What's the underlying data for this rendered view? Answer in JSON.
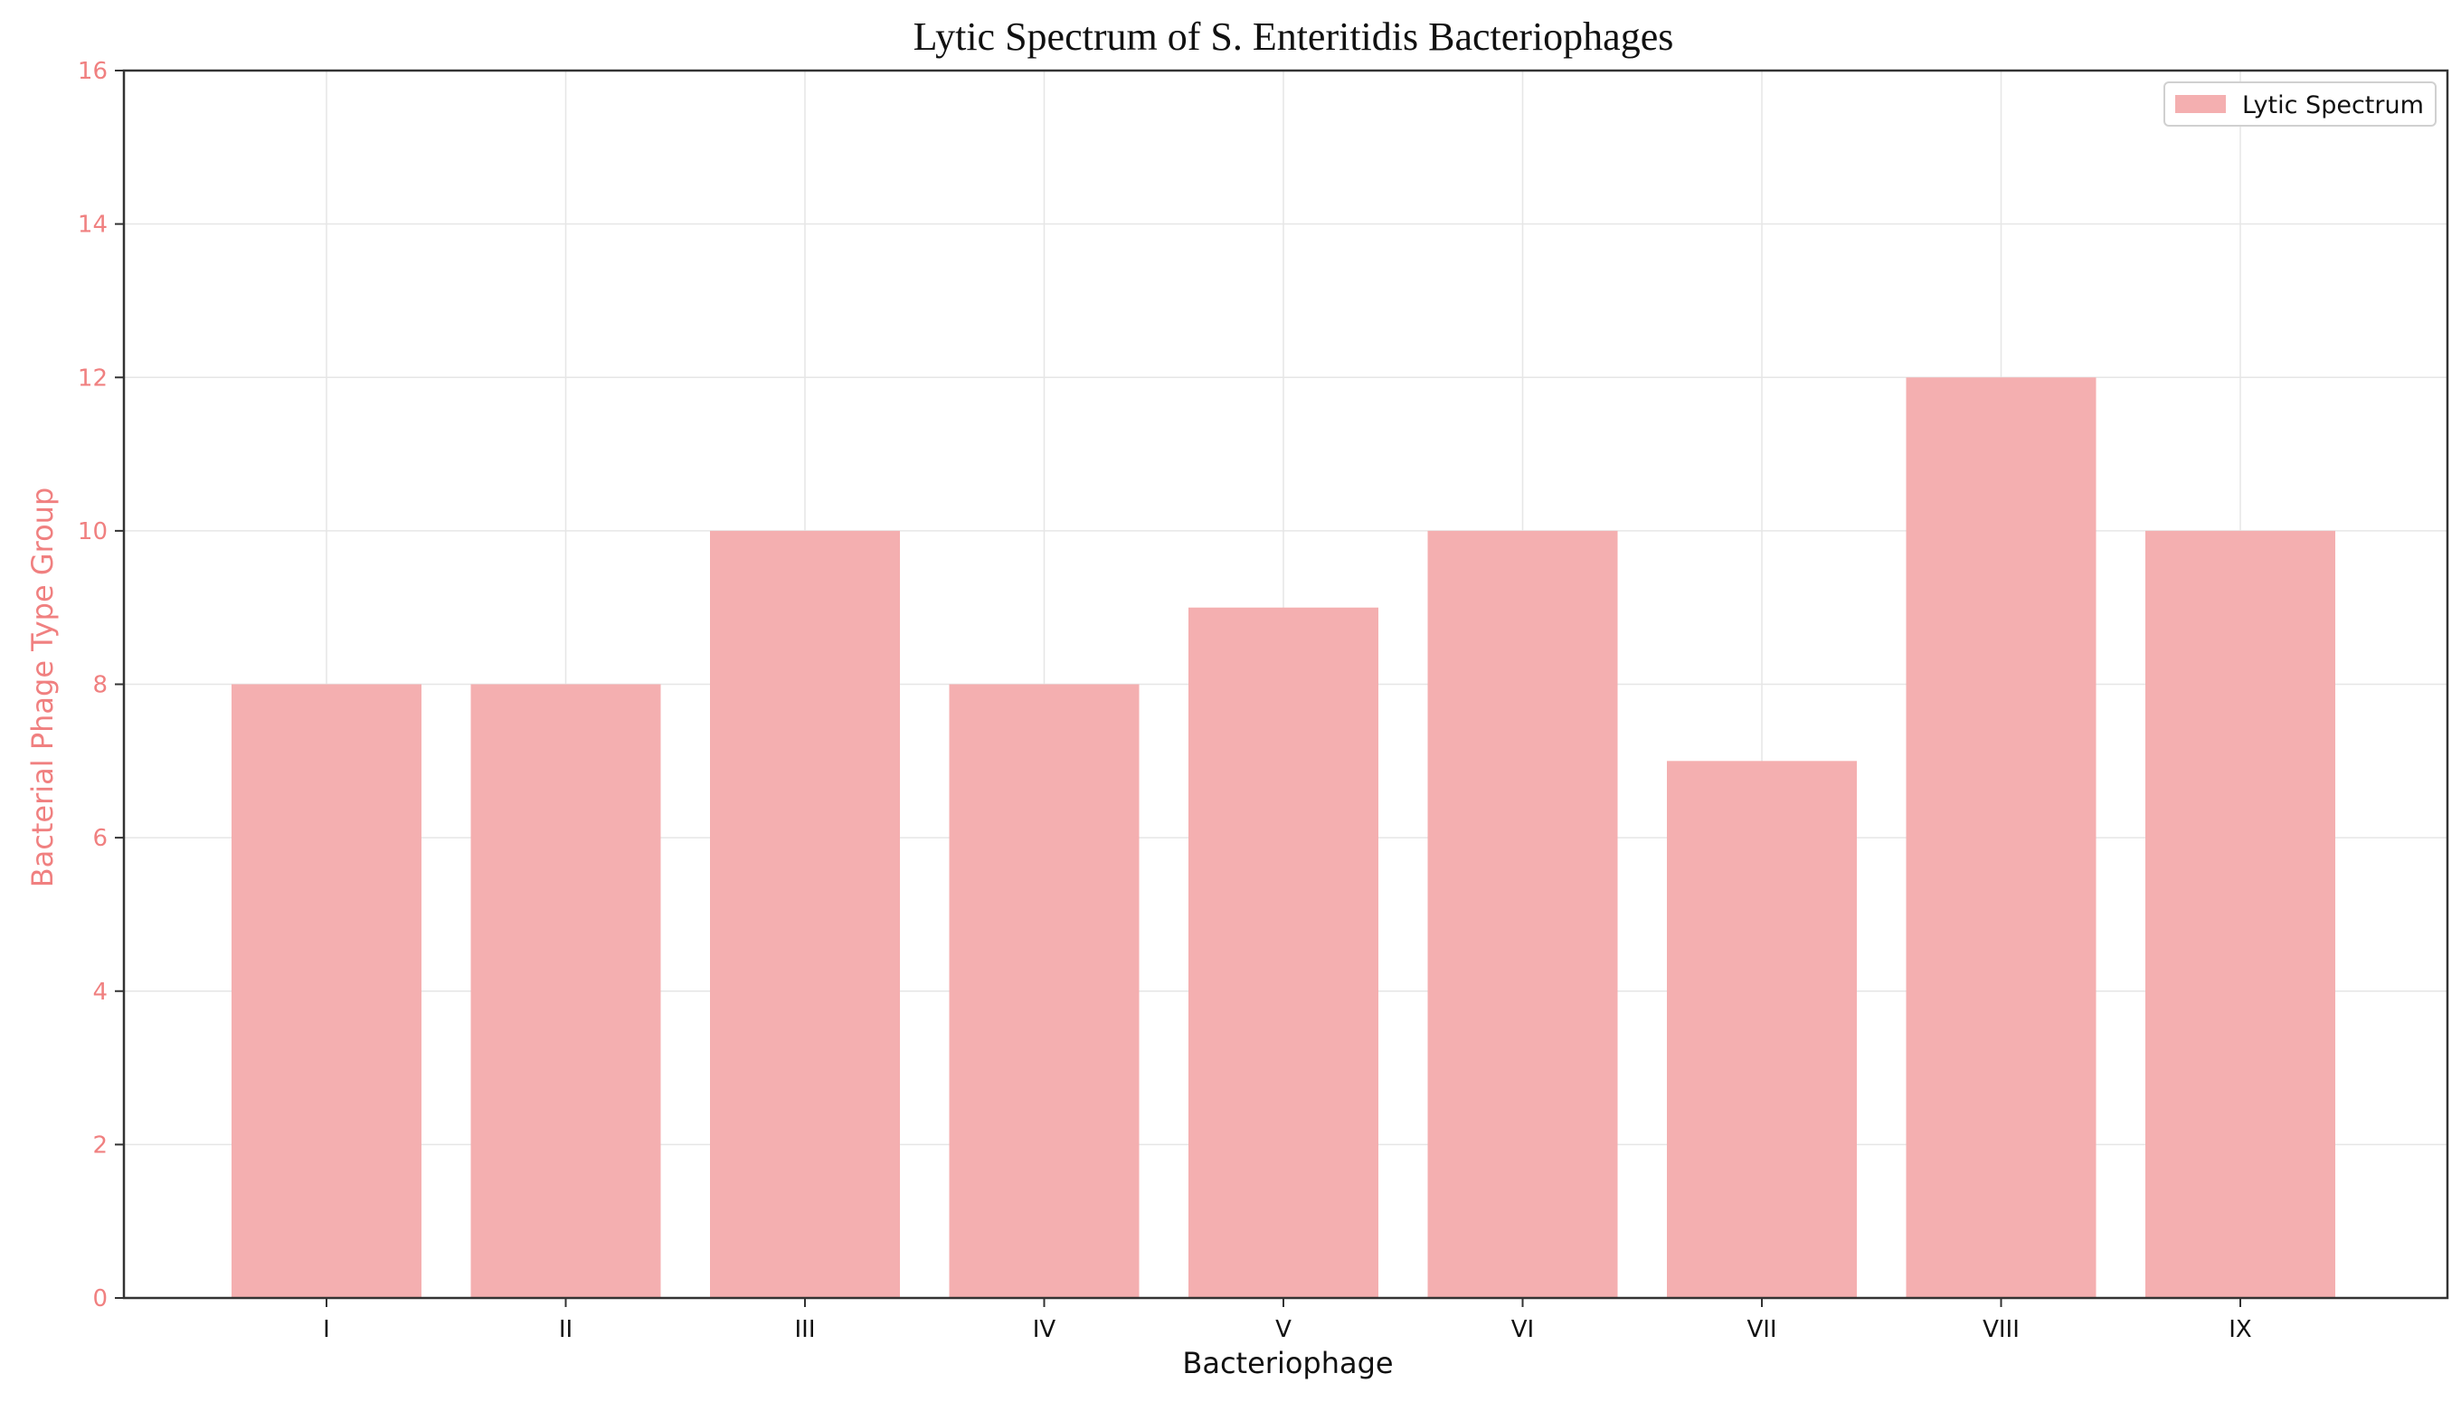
{
  "chart_data": {
    "type": "bar",
    "title": "Lytic Spectrum of S. Enteritidis Bacteriophages",
    "xlabel": "Bacteriophage",
    "ylabel": "Bacterial Phage Type Group",
    "categories": [
      "I",
      "II",
      "III",
      "IV",
      "V",
      "VI",
      "VII",
      "VIII",
      "IX"
    ],
    "series": [
      {
        "name": "Lytic Spectrum",
        "values": [
          8,
          8,
          10,
          8,
          9,
          10,
          7,
          12,
          10
        ]
      }
    ],
    "ylim": [
      0,
      16
    ],
    "yticks": [
      "0",
      "2",
      "4",
      "6",
      "8",
      "10",
      "12",
      "14",
      "16"
    ],
    "grid": true,
    "legend_position": "top-right",
    "colors": {
      "bar": "#f4afb0",
      "ylabel_text": "#f08080",
      "ytick_text": "#f08080",
      "axis": "#333333",
      "grid": "#e6e6e6",
      "text": "#111111"
    }
  }
}
